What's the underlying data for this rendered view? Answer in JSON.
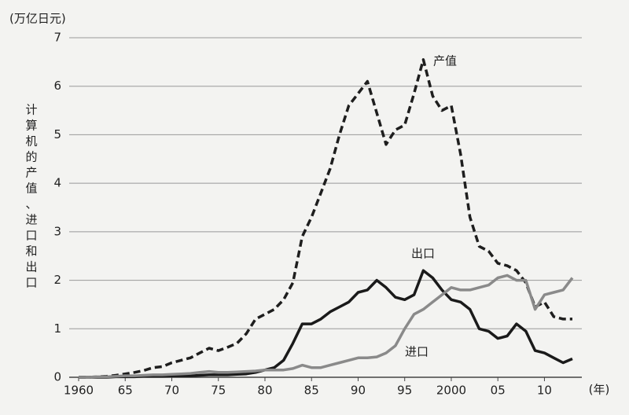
{
  "chart_data": {
    "type": "line",
    "y_unit": "(万亿日元)",
    "y_label": [
      "计",
      "算",
      "机",
      "的",
      "产",
      "值",
      "、",
      "进",
      "口",
      "和",
      "出",
      "口"
    ],
    "x_unit": "(年)",
    "x": [
      1960,
      1961,
      1962,
      1963,
      1964,
      1965,
      1966,
      1967,
      1968,
      1969,
      1970,
      1971,
      1972,
      1973,
      1974,
      1975,
      1976,
      1977,
      1978,
      1979,
      1980,
      1981,
      1982,
      1983,
      1984,
      1985,
      1986,
      1987,
      1988,
      1989,
      1990,
      1991,
      1992,
      1993,
      1994,
      1995,
      1996,
      1997,
      1998,
      1999,
      2000,
      2001,
      2002,
      2003,
      2004,
      2005,
      2006,
      2007,
      2008,
      2009,
      2010,
      2011,
      2012,
      2013
    ],
    "series": [
      {
        "name": "产值",
        "color": "#1e1e1e",
        "line_style": "dashed",
        "values": [
          0,
          0,
          0.01,
          0.02,
          0.04,
          0.07,
          0.1,
          0.14,
          0.2,
          0.22,
          0.3,
          0.35,
          0.4,
          0.5,
          0.6,
          0.55,
          0.62,
          0.7,
          0.9,
          1.2,
          1.3,
          1.4,
          1.6,
          1.95,
          2.9,
          3.3,
          3.8,
          4.3,
          5.0,
          5.6,
          5.85,
          6.1,
          5.45,
          4.8,
          5.1,
          5.2,
          5.85,
          6.55,
          5.8,
          5.5,
          5.6,
          4.6,
          3.3,
          2.7,
          2.6,
          2.35,
          2.3,
          2.2,
          1.95,
          1.45,
          1.55,
          1.25,
          1.2,
          1.2
        ]
      },
      {
        "name": "出口",
        "color": "#1a1a1a",
        "line_style": "solid",
        "values": [
          0,
          0,
          0,
          0,
          0.01,
          0.01,
          0.01,
          0.02,
          0.02,
          0.02,
          0.03,
          0.03,
          0.03,
          0.04,
          0.05,
          0.05,
          0.05,
          0.06,
          0.07,
          0.1,
          0.15,
          0.2,
          0.35,
          0.7,
          1.1,
          1.1,
          1.2,
          1.35,
          1.45,
          1.55,
          1.75,
          1.8,
          2.0,
          1.85,
          1.65,
          1.6,
          1.7,
          2.2,
          2.05,
          1.8,
          1.6,
          1.55,
          1.4,
          1.0,
          0.95,
          0.8,
          0.85,
          1.1,
          0.95,
          0.55,
          0.5,
          0.4,
          0.3,
          0.38
        ]
      },
      {
        "name": "进口",
        "color": "#8a8a8a",
        "line_style": "solid",
        "values": [
          0,
          0,
          0.01,
          0.01,
          0.02,
          0.03,
          0.03,
          0.04,
          0.05,
          0.05,
          0.06,
          0.07,
          0.08,
          0.1,
          0.12,
          0.1,
          0.1,
          0.11,
          0.12,
          0.13,
          0.15,
          0.15,
          0.15,
          0.18,
          0.25,
          0.2,
          0.2,
          0.25,
          0.3,
          0.35,
          0.4,
          0.4,
          0.42,
          0.5,
          0.65,
          1.0,
          1.3,
          1.4,
          1.55,
          1.7,
          1.85,
          1.8,
          1.8,
          1.85,
          1.9,
          2.05,
          2.1,
          2.0,
          2.0,
          1.4,
          1.7,
          1.75,
          1.8,
          2.05
        ]
      }
    ],
    "xlim": [
      1960,
      2013
    ],
    "xticks": [
      {
        "value": 1960,
        "label": "1960"
      },
      {
        "value": 1965,
        "label": "65"
      },
      {
        "value": 1970,
        "label": "70"
      },
      {
        "value": 1975,
        "label": "75"
      },
      {
        "value": 1980,
        "label": "80"
      },
      {
        "value": 1985,
        "label": "85"
      },
      {
        "value": 1990,
        "label": "90"
      },
      {
        "value": 1995,
        "label": "95"
      },
      {
        "value": 2000,
        "label": "2000"
      },
      {
        "value": 2005,
        "label": "05"
      },
      {
        "value": 2010,
        "label": "10"
      }
    ],
    "ylim": [
      0,
      7
    ],
    "yticks": [
      0,
      1,
      2,
      3,
      4,
      5,
      6,
      7
    ],
    "grid": true
  }
}
